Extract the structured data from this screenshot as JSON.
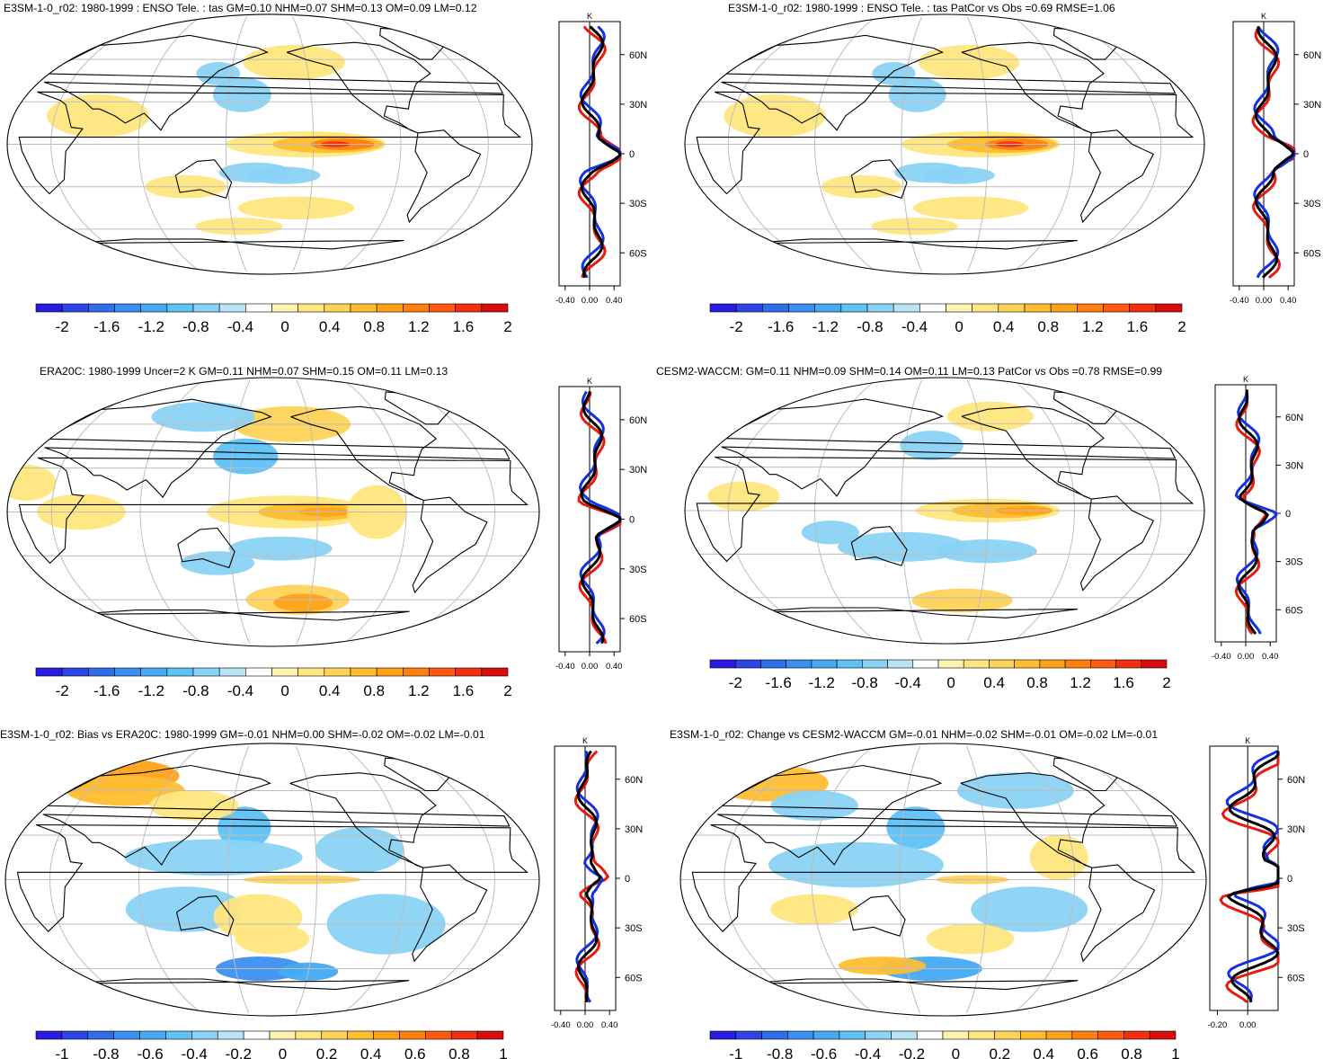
{
  "colors": {
    "palette": [
      "#2a1be0",
      "#2e45e6",
      "#2f6ee8",
      "#3b8ff0",
      "#45aaf2",
      "#5ec2f5",
      "#8ad3f5",
      "#b8e4f5",
      "#ffffff",
      "#fff3b0",
      "#ffe680",
      "#ffd35a",
      "#ffbd30",
      "#ffa21a",
      "#ff8010",
      "#ff5a10",
      "#f03010",
      "#d80d0d"
    ],
    "land_outline": "#000000",
    "grid": "#bdbdbd",
    "profile_red": "#e8190f",
    "profile_blue": "#1530e0",
    "profile_black": "#000000"
  },
  "chart_data": [
    {
      "type": "heatmap",
      "title": "E3SM-1-0_r02: 1980-1999 : ENSO Tele. : tas GM=0.10 NHM=0.07 SHM=0.13 OM=0.09 LM=0.12",
      "colorbar_ticks": [
        "-2",
        "-1.6",
        "-1.2",
        "-0.8",
        "-0.4",
        "0",
        "0.4",
        "0.8",
        "1.2",
        "1.6",
        "2"
      ],
      "profile": {
        "unit": "K",
        "xticks": [
          "-0.40",
          "0.00",
          "0.40"
        ],
        "xlim": [
          -0.5,
          0.5
        ],
        "yticks": [
          "60N",
          "30N",
          "0",
          "30S",
          "60S"
        ],
        "ylim": [
          -80,
          80
        ]
      }
    },
    {
      "type": "heatmap",
      "title": "E3SM-1-0_r02: 1980-1999 : ENSO Tele. : tas PatCor vs Obs =0.69 RMSE=1.06",
      "colorbar_ticks": [
        "-2",
        "-1.6",
        "-1.2",
        "-0.8",
        "-0.4",
        "0",
        "0.4",
        "0.8",
        "1.2",
        "1.6",
        "2"
      ],
      "profile": {
        "unit": "K",
        "xticks": [
          "-0.40",
          "0.00",
          "0.40"
        ],
        "xlim": [
          -0.5,
          0.5
        ],
        "yticks": [
          "60N",
          "30N",
          "0",
          "30S",
          "60S"
        ],
        "ylim": [
          -80,
          80
        ]
      }
    },
    {
      "type": "heatmap",
      "title": "ERA20C: 1980-1999 Uncer=2 K GM=0.11 NHM=0.07 SHM=0.15 OM=0.11 LM=0.13",
      "colorbar_ticks": [
        "-2",
        "-1.6",
        "-1.2",
        "-0.8",
        "-0.4",
        "0",
        "0.4",
        "0.8",
        "1.2",
        "1.6",
        "2"
      ],
      "profile": {
        "unit": "K",
        "xticks": [
          "-0.40",
          "0.00",
          "0.40"
        ],
        "xlim": [
          -0.5,
          0.5
        ],
        "yticks": [
          "60N",
          "30N",
          "0",
          "30S",
          "60S"
        ],
        "ylim": [
          -80,
          80
        ]
      }
    },
    {
      "type": "heatmap",
      "title": "CESM2-WACCM: GM=0.11 NHM=0.09 SHM=0.14 OM=0.11 LM=0.13 PatCor vs Obs =0.78 RMSE=0.99",
      "colorbar_ticks": [
        "-2",
        "-1.6",
        "-1.2",
        "-0.8",
        "-0.4",
        "0",
        "0.4",
        "0.8",
        "1.2",
        "1.6",
        "2"
      ],
      "profile": {
        "unit": "K",
        "xticks": [
          "-0.40",
          "0.00",
          "0.40"
        ],
        "xlim": [
          -0.5,
          0.5
        ],
        "yticks": [
          "60N",
          "30N",
          "0",
          "30S",
          "60S"
        ],
        "ylim": [
          -80,
          80
        ]
      }
    },
    {
      "type": "heatmap",
      "title": "E3SM-1-0_r02: Bias vs ERA20C: 1980-1999 GM=-0.01 NHM=0.00 SHM=-0.02 OM=-0.02 LM=-0.01",
      "colorbar_ticks": [
        "-1",
        "-0.8",
        "-0.6",
        "-0.4",
        "-0.2",
        "0",
        "0.2",
        "0.4",
        "0.6",
        "0.8",
        "1"
      ],
      "profile": {
        "unit": "K",
        "xticks": [
          "-0.40",
          "0.00",
          "0.40"
        ],
        "xlim": [
          -0.5,
          0.5
        ],
        "yticks": [
          "60N",
          "30N",
          "0",
          "30S",
          "60S"
        ],
        "ylim": [
          -80,
          80
        ]
      }
    },
    {
      "type": "heatmap",
      "title": "E3SM-1-0_r02: Change vs CESM2-WACCM GM=-0.01 NHM=-0.02 SHM=-0.01 OM=-0.02 LM=-0.01",
      "colorbar_ticks": [
        "-1",
        "-0.8",
        "-0.6",
        "-0.4",
        "-0.2",
        "0",
        "0.2",
        "0.4",
        "0.6",
        "0.8",
        "1"
      ],
      "profile": {
        "unit": "K",
        "xticks": [
          "-0.20",
          "0.00"
        ],
        "xlim": [
          -0.25,
          0.2
        ],
        "yticks": [
          "60N",
          "30N",
          "0",
          "30S",
          "60S"
        ],
        "ylim": [
          -80,
          80
        ]
      }
    }
  ]
}
